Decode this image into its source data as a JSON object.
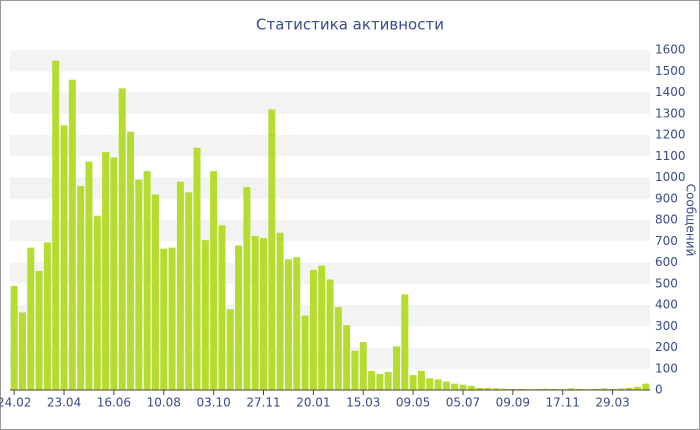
{
  "chart_data": {
    "type": "bar",
    "title": "Статистика активности",
    "y_label": "Сообщений",
    "color": "#b5dc2f",
    "grid": true,
    "y_axis_side": "right",
    "categories": [
      "24.02",
      null,
      null,
      null,
      null,
      null,
      "23.04",
      null,
      null,
      null,
      null,
      null,
      "16.06",
      null,
      null,
      null,
      null,
      null,
      "10.08",
      null,
      null,
      null,
      null,
      null,
      "03.10",
      null,
      null,
      null,
      null,
      null,
      "27.11",
      null,
      null,
      null,
      null,
      null,
      "20.01",
      null,
      null,
      null,
      null,
      null,
      "15.03",
      null,
      null,
      null,
      null,
      null,
      "09.05",
      null,
      null,
      null,
      null,
      null,
      "05.07",
      null,
      null,
      null,
      null,
      null,
      "09.09",
      null,
      null,
      null,
      null,
      null,
      "17.11",
      null,
      null,
      null,
      null,
      null,
      "29.03",
      null,
      null,
      null,
      null
    ],
    "values": [
      490,
      365,
      670,
      560,
      695,
      1550,
      1245,
      1460,
      960,
      1075,
      820,
      1120,
      1095,
      1420,
      1215,
      990,
      1030,
      920,
      665,
      670,
      980,
      930,
      1140,
      705,
      1030,
      775,
      380,
      680,
      955,
      725,
      715,
      1320,
      740,
      615,
      625,
      350,
      565,
      585,
      520,
      390,
      305,
      185,
      225,
      90,
      75,
      85,
      205,
      450,
      70,
      90,
      55,
      50,
      40,
      30,
      25,
      20,
      10,
      10,
      8,
      6,
      5,
      5,
      4,
      5,
      6,
      5,
      4,
      8,
      5,
      4,
      6,
      8,
      5,
      7,
      10,
      15,
      30
    ],
    "ylim": [
      0,
      1600
    ],
    "yticks": [
      0,
      100,
      200,
      300,
      400,
      500,
      600,
      700,
      800,
      900,
      1000,
      1100,
      1200,
      1300,
      1400,
      1500,
      1600
    ]
  }
}
